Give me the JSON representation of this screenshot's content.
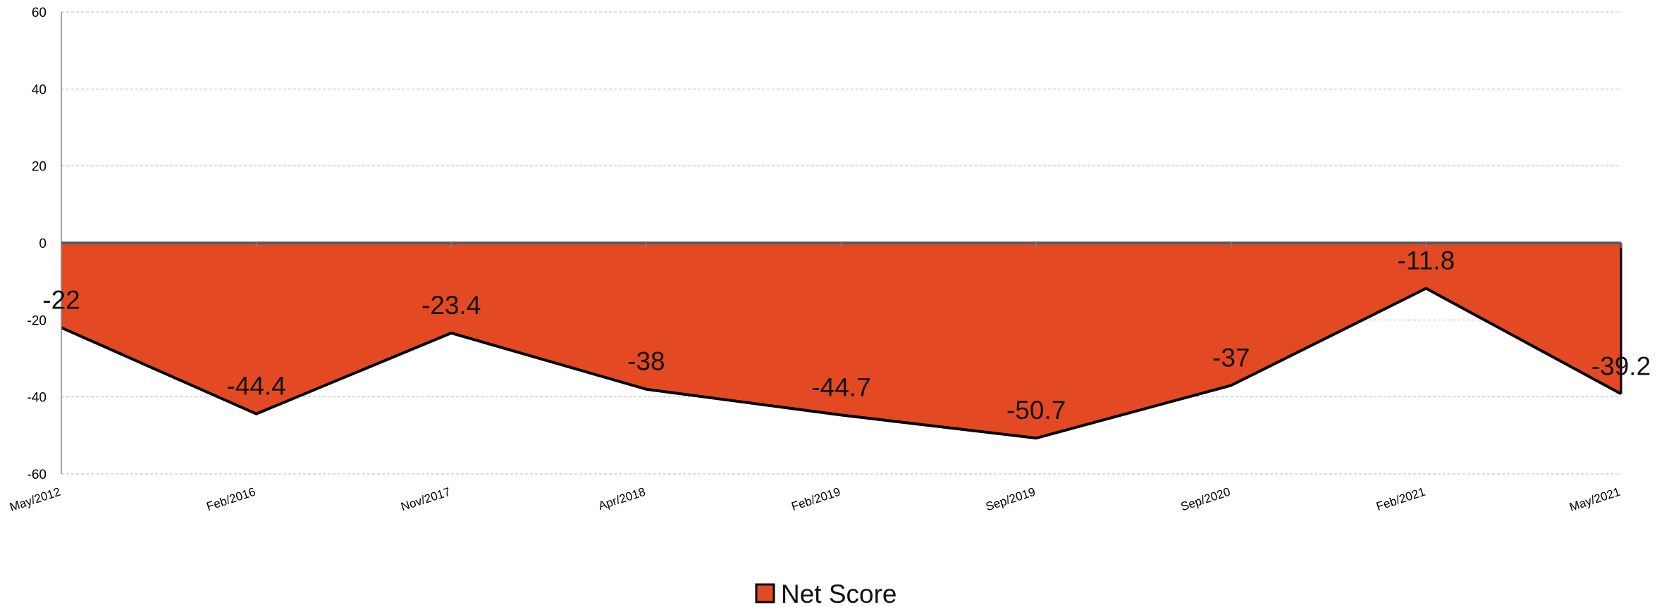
{
  "chart_data": {
    "type": "area",
    "categories": [
      "May/2012",
      "Feb/2016",
      "Nov/2017",
      "Apr/2018",
      "Feb/2019",
      "Sep/2019",
      "Sep/2020",
      "Feb/2021",
      "May/2021"
    ],
    "series": [
      {
        "name": "Net Score",
        "values": [
          -22,
          -44.4,
          -23.4,
          -38,
          -44.7,
          -50.7,
          -37,
          -11.8,
          -39.2
        ],
        "color": "#E34A24"
      }
    ],
    "data_labels": [
      "-22",
      "-44.4",
      "-23.4",
      "-38",
      "-44.7",
      "-50.7",
      "-37",
      "-11.8",
      "-39.2"
    ],
    "y_ticks": [
      "60",
      "40",
      "20",
      "0",
      "-20",
      "-40",
      "-60"
    ],
    "ylim": [
      -60,
      60
    ],
    "grid": true,
    "legend_position": "bottom",
    "title": "",
    "xlabel": "",
    "ylabel": ""
  }
}
